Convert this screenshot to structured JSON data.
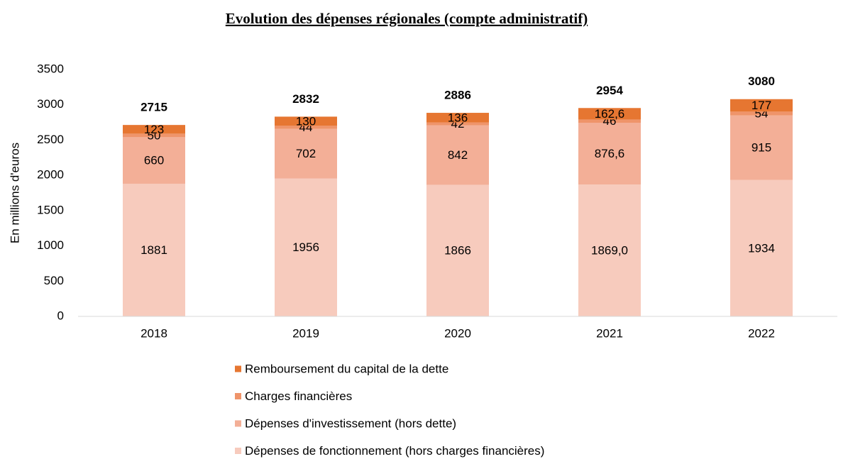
{
  "chart_data": {
    "type": "stacked_bar",
    "title": "Evolution des dépenses régionales (compte administratif)",
    "y_label": "En millions d'euros",
    "categories": [
      "2018",
      "2019",
      "2020",
      "2021",
      "2022"
    ],
    "series": [
      {
        "name": "Dépenses de fonctionnement (hors charges financières)",
        "color": "#f7cbbd",
        "values": [
          1881,
          1956,
          1866,
          1869.0,
          1934
        ],
        "value_labels": [
          "1881",
          "1956",
          "1866",
          "1869,0",
          "1934"
        ]
      },
      {
        "name": "Dépenses d'investissement (hors dette)",
        "color": "#f3af97",
        "values": [
          660,
          702,
          842,
          876.6,
          915
        ],
        "value_labels": [
          "660",
          "702",
          "842",
          "876,6",
          "915"
        ]
      },
      {
        "name": "Charges financières",
        "color": "#ef946a",
        "values": [
          50,
          44,
          42,
          46,
          54
        ]
      },
      {
        "name": "Remboursement du capital de la dette",
        "color": "#e67631",
        "values": [
          123,
          130,
          136,
          162.6,
          177
        ],
        "value_labels": [
          "123",
          "130",
          "136",
          "162,6",
          "177"
        ]
      }
    ],
    "totals": [
      2715,
      2832,
      2886,
      2954,
      3080
    ],
    "ylim": [
      0,
      3500
    ],
    "yticks": [
      0,
      500,
      1000,
      1500,
      2000,
      2500,
      3000,
      3500
    ],
    "grid": false
  }
}
